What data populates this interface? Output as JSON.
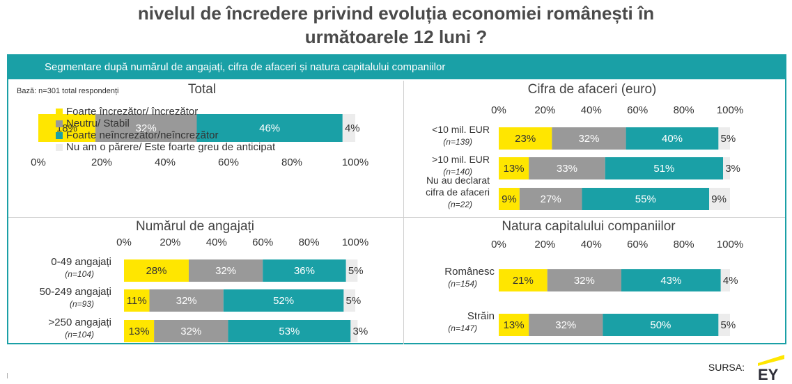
{
  "title_line1": "nivelul  de încredere privind evoluția economiei românești în",
  "title_line2": "următoarele 12 luni ?",
  "banner": "Segmentare după numărul de angajați, cifra de afaceri și natura capitalului companiilor",
  "base_note": "Bază: n=301 total respondenți",
  "source_label": "SURSA:",
  "logo_text": "EY",
  "colors": {
    "teal": "#1aa0a6",
    "yellow": "#ffe600",
    "gray": "#999999",
    "light": "#ececec"
  },
  "legend": [
    {
      "label": "Foarte încrezător/ încrezător",
      "color": "#ffe600"
    },
    {
      "label": "Neutru/ Stabil",
      "color": "#999999"
    },
    {
      "label": "Foarte neîncrezător/neîncrezător",
      "color": "#1aa0a6"
    },
    {
      "label": "Nu am o părere/ Este foarte greu de anticipat",
      "color": "#ececec"
    }
  ],
  "chart_data": [
    {
      "type": "bar",
      "stacked": true,
      "orientation": "horizontal",
      "title": "Total",
      "xlim": [
        0,
        100
      ],
      "ticks": [
        "0%",
        "20%",
        "40%",
        "60%",
        "80%",
        "100%"
      ],
      "categories": [
        {
          "label": "",
          "n": ""
        }
      ],
      "series": [
        {
          "name": "Foarte încrezător/ încrezător",
          "values": [
            18
          ]
        },
        {
          "name": "Neutru/ Stabil",
          "values": [
            32
          ]
        },
        {
          "name": "Foarte neîncrezător/neîncrezător",
          "values": [
            46
          ]
        },
        {
          "name": "Nu am o părere/ Este foarte greu de anticipat",
          "values": [
            4
          ]
        }
      ]
    },
    {
      "type": "bar",
      "stacked": true,
      "orientation": "horizontal",
      "title": "Cifra de afaceri (euro)",
      "xlim": [
        0,
        100
      ],
      "ticks": [
        "0%",
        "20%",
        "40%",
        "60%",
        "80%",
        "100%"
      ],
      "categories": [
        {
          "label": "<10 mil. EUR",
          "n": "(n=139)"
        },
        {
          "label": ">10 mil. EUR",
          "n": "(n=140)"
        },
        {
          "label": "Nu au declarat|cifra de afaceri",
          "n": "(n=22)"
        }
      ],
      "series": [
        {
          "name": "Foarte încrezător/ încrezător",
          "values": [
            23,
            13,
            9
          ]
        },
        {
          "name": "Neutru/ Stabil",
          "values": [
            32,
            33,
            27
          ]
        },
        {
          "name": "Foarte neîncrezător/neîncrezător",
          "values": [
            40,
            51,
            55
          ]
        },
        {
          "name": "Nu am o părere/ Este foarte greu de anticipat",
          "values": [
            5,
            3,
            9
          ]
        }
      ]
    },
    {
      "type": "bar",
      "stacked": true,
      "orientation": "horizontal",
      "title": "Numărul de angajați",
      "xlim": [
        0,
        100
      ],
      "ticks": [
        "0%",
        "20%",
        "40%",
        "60%",
        "80%",
        "100%"
      ],
      "categories": [
        {
          "label": "0-49 angajați",
          "n": "(n=104)"
        },
        {
          "label": "50-249 angajați",
          "n": "(n=93)"
        },
        {
          "label": ">250 angajați",
          "n": "(n=104)"
        }
      ],
      "series": [
        {
          "name": "Foarte încrezător/ încrezător",
          "values": [
            28,
            11,
            13
          ]
        },
        {
          "name": "Neutru/ Stabil",
          "values": [
            32,
            32,
            32
          ]
        },
        {
          "name": "Foarte neîncrezător/neîncrezător",
          "values": [
            36,
            52,
            53
          ]
        },
        {
          "name": "Nu am o părere/ Este foarte greu de anticipat",
          "values": [
            5,
            5,
            3
          ]
        }
      ]
    },
    {
      "type": "bar",
      "stacked": true,
      "orientation": "horizontal",
      "title": "Natura capitalului companiilor",
      "xlim": [
        0,
        100
      ],
      "ticks": [
        "0%",
        "20%",
        "40%",
        "60%",
        "80%",
        "100%"
      ],
      "categories": [
        {
          "label": "Românesc",
          "n": "(n=154)"
        },
        {
          "label": "Străin",
          "n": "(n=147)"
        }
      ],
      "series": [
        {
          "name": "Foarte încrezător/ încrezător",
          "values": [
            21,
            13
          ]
        },
        {
          "name": "Neutru/ Stabil",
          "values": [
            32,
            32
          ]
        },
        {
          "name": "Foarte neîncrezător/neîncrezător",
          "values": [
            43,
            50
          ]
        },
        {
          "name": "Nu am o părere/ Este foarte greu de anticipat",
          "values": [
            4,
            5
          ]
        }
      ]
    }
  ]
}
